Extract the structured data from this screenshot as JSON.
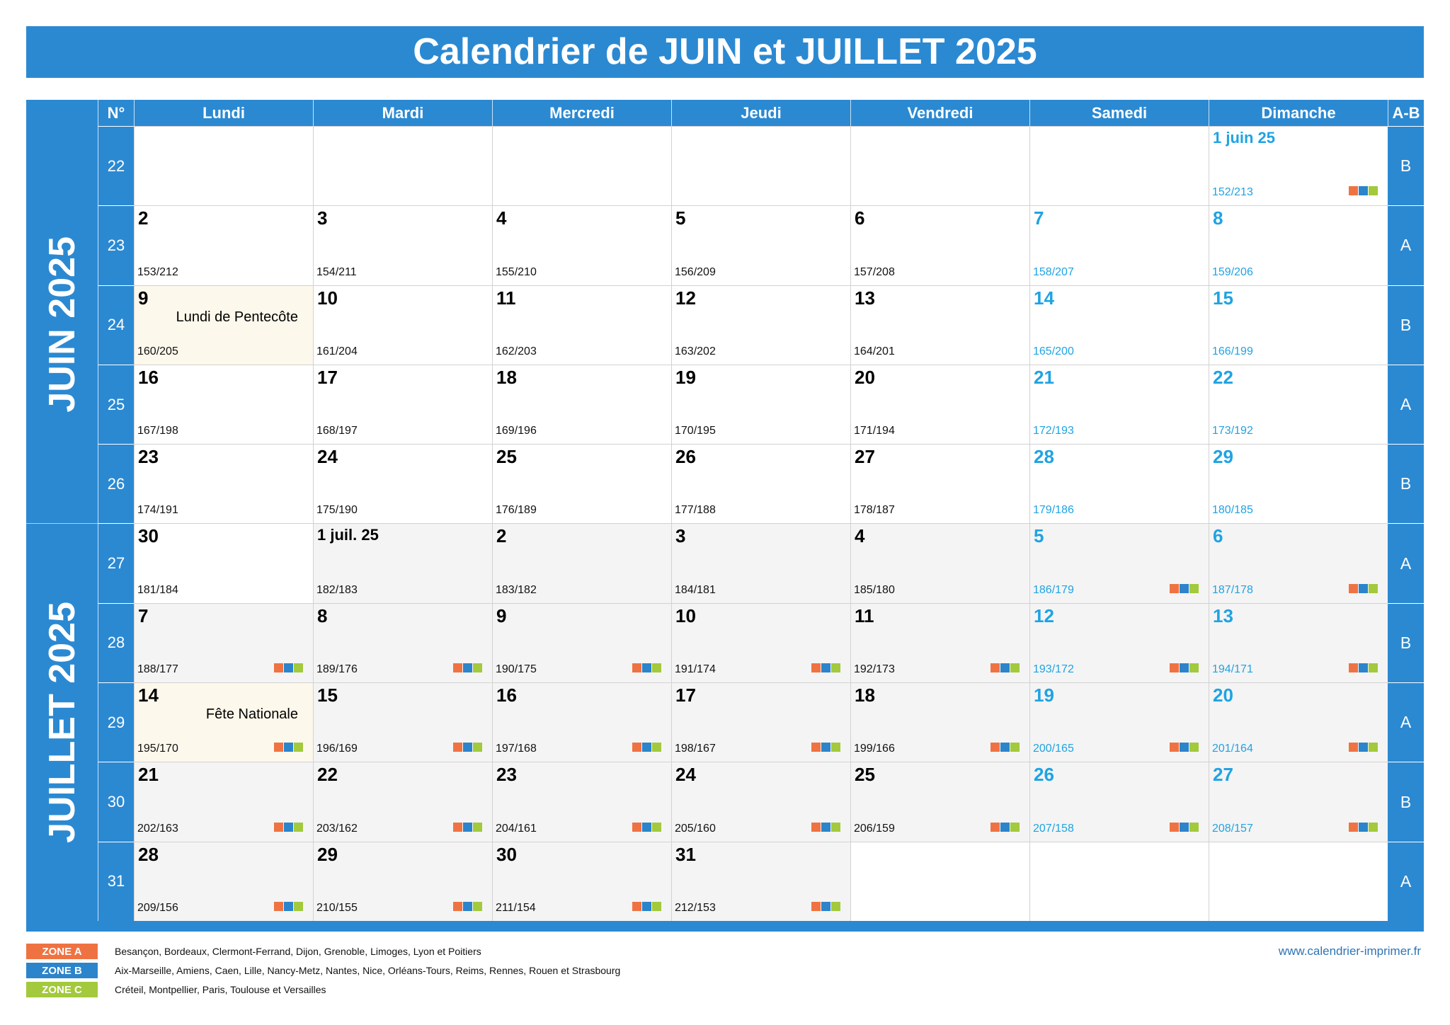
{
  "title": "Calendrier de JUIN et JUILLET 2025",
  "header": {
    "week_col": "N°",
    "days": [
      "Lundi",
      "Mardi",
      "Mercredi",
      "Jeudi",
      "Vendredi",
      "Samedi",
      "Dimanche"
    ],
    "ab_col": "A-B"
  },
  "months": [
    "JUIN 2025",
    "JUILLET 2025"
  ],
  "weeks": [
    {
      "number": "22",
      "ab": "B",
      "days": [
        null,
        null,
        null,
        null,
        null,
        null,
        {
          "label": "1 juin 25",
          "doy": "152/213",
          "school_holiday": true
        }
      ]
    },
    {
      "number": "23",
      "ab": "A",
      "days": [
        {
          "label": "2",
          "doy": "153/212"
        },
        {
          "label": "3",
          "doy": "154/211"
        },
        {
          "label": "4",
          "doy": "155/210"
        },
        {
          "label": "5",
          "doy": "156/209"
        },
        {
          "label": "6",
          "doy": "157/208"
        },
        {
          "label": "7",
          "doy": "158/207"
        },
        {
          "label": "8",
          "doy": "159/206"
        }
      ]
    },
    {
      "number": "24",
      "ab": "B",
      "days": [
        {
          "label": "9",
          "doy": "160/205",
          "holiday": "Lundi de Pentecôte"
        },
        {
          "label": "10",
          "doy": "161/204"
        },
        {
          "label": "11",
          "doy": "162/203"
        },
        {
          "label": "12",
          "doy": "163/202"
        },
        {
          "label": "13",
          "doy": "164/201"
        },
        {
          "label": "14",
          "doy": "165/200"
        },
        {
          "label": "15",
          "doy": "166/199"
        }
      ]
    },
    {
      "number": "25",
      "ab": "A",
      "days": [
        {
          "label": "16",
          "doy": "167/198"
        },
        {
          "label": "17",
          "doy": "168/197"
        },
        {
          "label": "18",
          "doy": "169/196"
        },
        {
          "label": "19",
          "doy": "170/195"
        },
        {
          "label": "20",
          "doy": "171/194"
        },
        {
          "label": "21",
          "doy": "172/193"
        },
        {
          "label": "22",
          "doy": "173/192"
        }
      ]
    },
    {
      "number": "26",
      "ab": "B",
      "days": [
        {
          "label": "23",
          "doy": "174/191"
        },
        {
          "label": "24",
          "doy": "175/190"
        },
        {
          "label": "25",
          "doy": "176/189"
        },
        {
          "label": "26",
          "doy": "177/188"
        },
        {
          "label": "27",
          "doy": "178/187"
        },
        {
          "label": "28",
          "doy": "179/186"
        },
        {
          "label": "29",
          "doy": "180/185"
        }
      ]
    },
    {
      "number": "27",
      "ab": "A",
      "days": [
        {
          "label": "30",
          "doy": "181/184"
        },
        {
          "label": "1 juil. 25",
          "doy": "182/183",
          "shaded": true
        },
        {
          "label": "2",
          "doy": "183/182",
          "shaded": true
        },
        {
          "label": "3",
          "doy": "184/181",
          "shaded": true
        },
        {
          "label": "4",
          "doy": "185/180",
          "shaded": true
        },
        {
          "label": "5",
          "doy": "186/179",
          "shaded": true,
          "school_holiday": true
        },
        {
          "label": "6",
          "doy": "187/178",
          "shaded": true,
          "school_holiday": true
        }
      ]
    },
    {
      "number": "28",
      "ab": "B",
      "days": [
        {
          "label": "7",
          "doy": "188/177",
          "shaded": true,
          "school_holiday": true
        },
        {
          "label": "8",
          "doy": "189/176",
          "shaded": true,
          "school_holiday": true
        },
        {
          "label": "9",
          "doy": "190/175",
          "shaded": true,
          "school_holiday": true
        },
        {
          "label": "10",
          "doy": "191/174",
          "shaded": true,
          "school_holiday": true
        },
        {
          "label": "11",
          "doy": "192/173",
          "shaded": true,
          "school_holiday": true
        },
        {
          "label": "12",
          "doy": "193/172",
          "shaded": true,
          "school_holiday": true
        },
        {
          "label": "13",
          "doy": "194/171",
          "shaded": true,
          "school_holiday": true
        }
      ]
    },
    {
      "number": "29",
      "ab": "A",
      "days": [
        {
          "label": "14",
          "doy": "195/170",
          "shaded": true,
          "school_holiday": true,
          "holiday": "Fête Nationale"
        },
        {
          "label": "15",
          "doy": "196/169",
          "shaded": true,
          "school_holiday": true
        },
        {
          "label": "16",
          "doy": "197/168",
          "shaded": true,
          "school_holiday": true
        },
        {
          "label": "17",
          "doy": "198/167",
          "shaded": true,
          "school_holiday": true
        },
        {
          "label": "18",
          "doy": "199/166",
          "shaded": true,
          "school_holiday": true
        },
        {
          "label": "19",
          "doy": "200/165",
          "shaded": true,
          "school_holiday": true
        },
        {
          "label": "20",
          "doy": "201/164",
          "shaded": true,
          "school_holiday": true
        }
      ]
    },
    {
      "number": "30",
      "ab": "B",
      "days": [
        {
          "label": "21",
          "doy": "202/163",
          "shaded": true,
          "school_holiday": true
        },
        {
          "label": "22",
          "doy": "203/162",
          "shaded": true,
          "school_holiday": true
        },
        {
          "label": "23",
          "doy": "204/161",
          "shaded": true,
          "school_holiday": true
        },
        {
          "label": "24",
          "doy": "205/160",
          "shaded": true,
          "school_holiday": true
        },
        {
          "label": "25",
          "doy": "206/159",
          "shaded": true,
          "school_holiday": true
        },
        {
          "label": "26",
          "doy": "207/158",
          "shaded": true,
          "school_holiday": true
        },
        {
          "label": "27",
          "doy": "208/157",
          "shaded": true,
          "school_holiday": true
        }
      ]
    },
    {
      "number": "31",
      "ab": "A",
      "days": [
        {
          "label": "28",
          "doy": "209/156",
          "shaded": true,
          "school_holiday": true
        },
        {
          "label": "29",
          "doy": "210/155",
          "shaded": true,
          "school_holiday": true
        },
        {
          "label": "30",
          "doy": "211/154",
          "shaded": true,
          "school_holiday": true
        },
        {
          "label": "31",
          "doy": "212/153",
          "shaded": true,
          "school_holiday": true
        },
        null,
        null,
        null
      ]
    }
  ],
  "legend": [
    {
      "label": "ZONE A",
      "color": "#ef7342",
      "cities": "Besançon, Bordeaux, Clermont-Ferrand, Dijon, Grenoble, Limoges, Lyon et Poitiers"
    },
    {
      "label": "ZONE B",
      "color": "#2c84cb",
      "cities": "Aix-Marseille, Amiens, Caen, Lille, Nancy-Metz, Nantes, Nice, Orléans-Tours, Reims, Rennes, Rouen et Strasbourg"
    },
    {
      "label": "ZONE C",
      "color": "#a3c93c",
      "cities": "Créteil, Montpellier, Paris, Toulouse et Versailles"
    }
  ],
  "website": "www.calendrier-imprimer.fr",
  "colors": {
    "header_blue": "#2b89d2",
    "weekend_text": "#1fa3e3",
    "shaded_bg": "#f4f4f4",
    "holiday_bg": "#fdf8ec"
  }
}
